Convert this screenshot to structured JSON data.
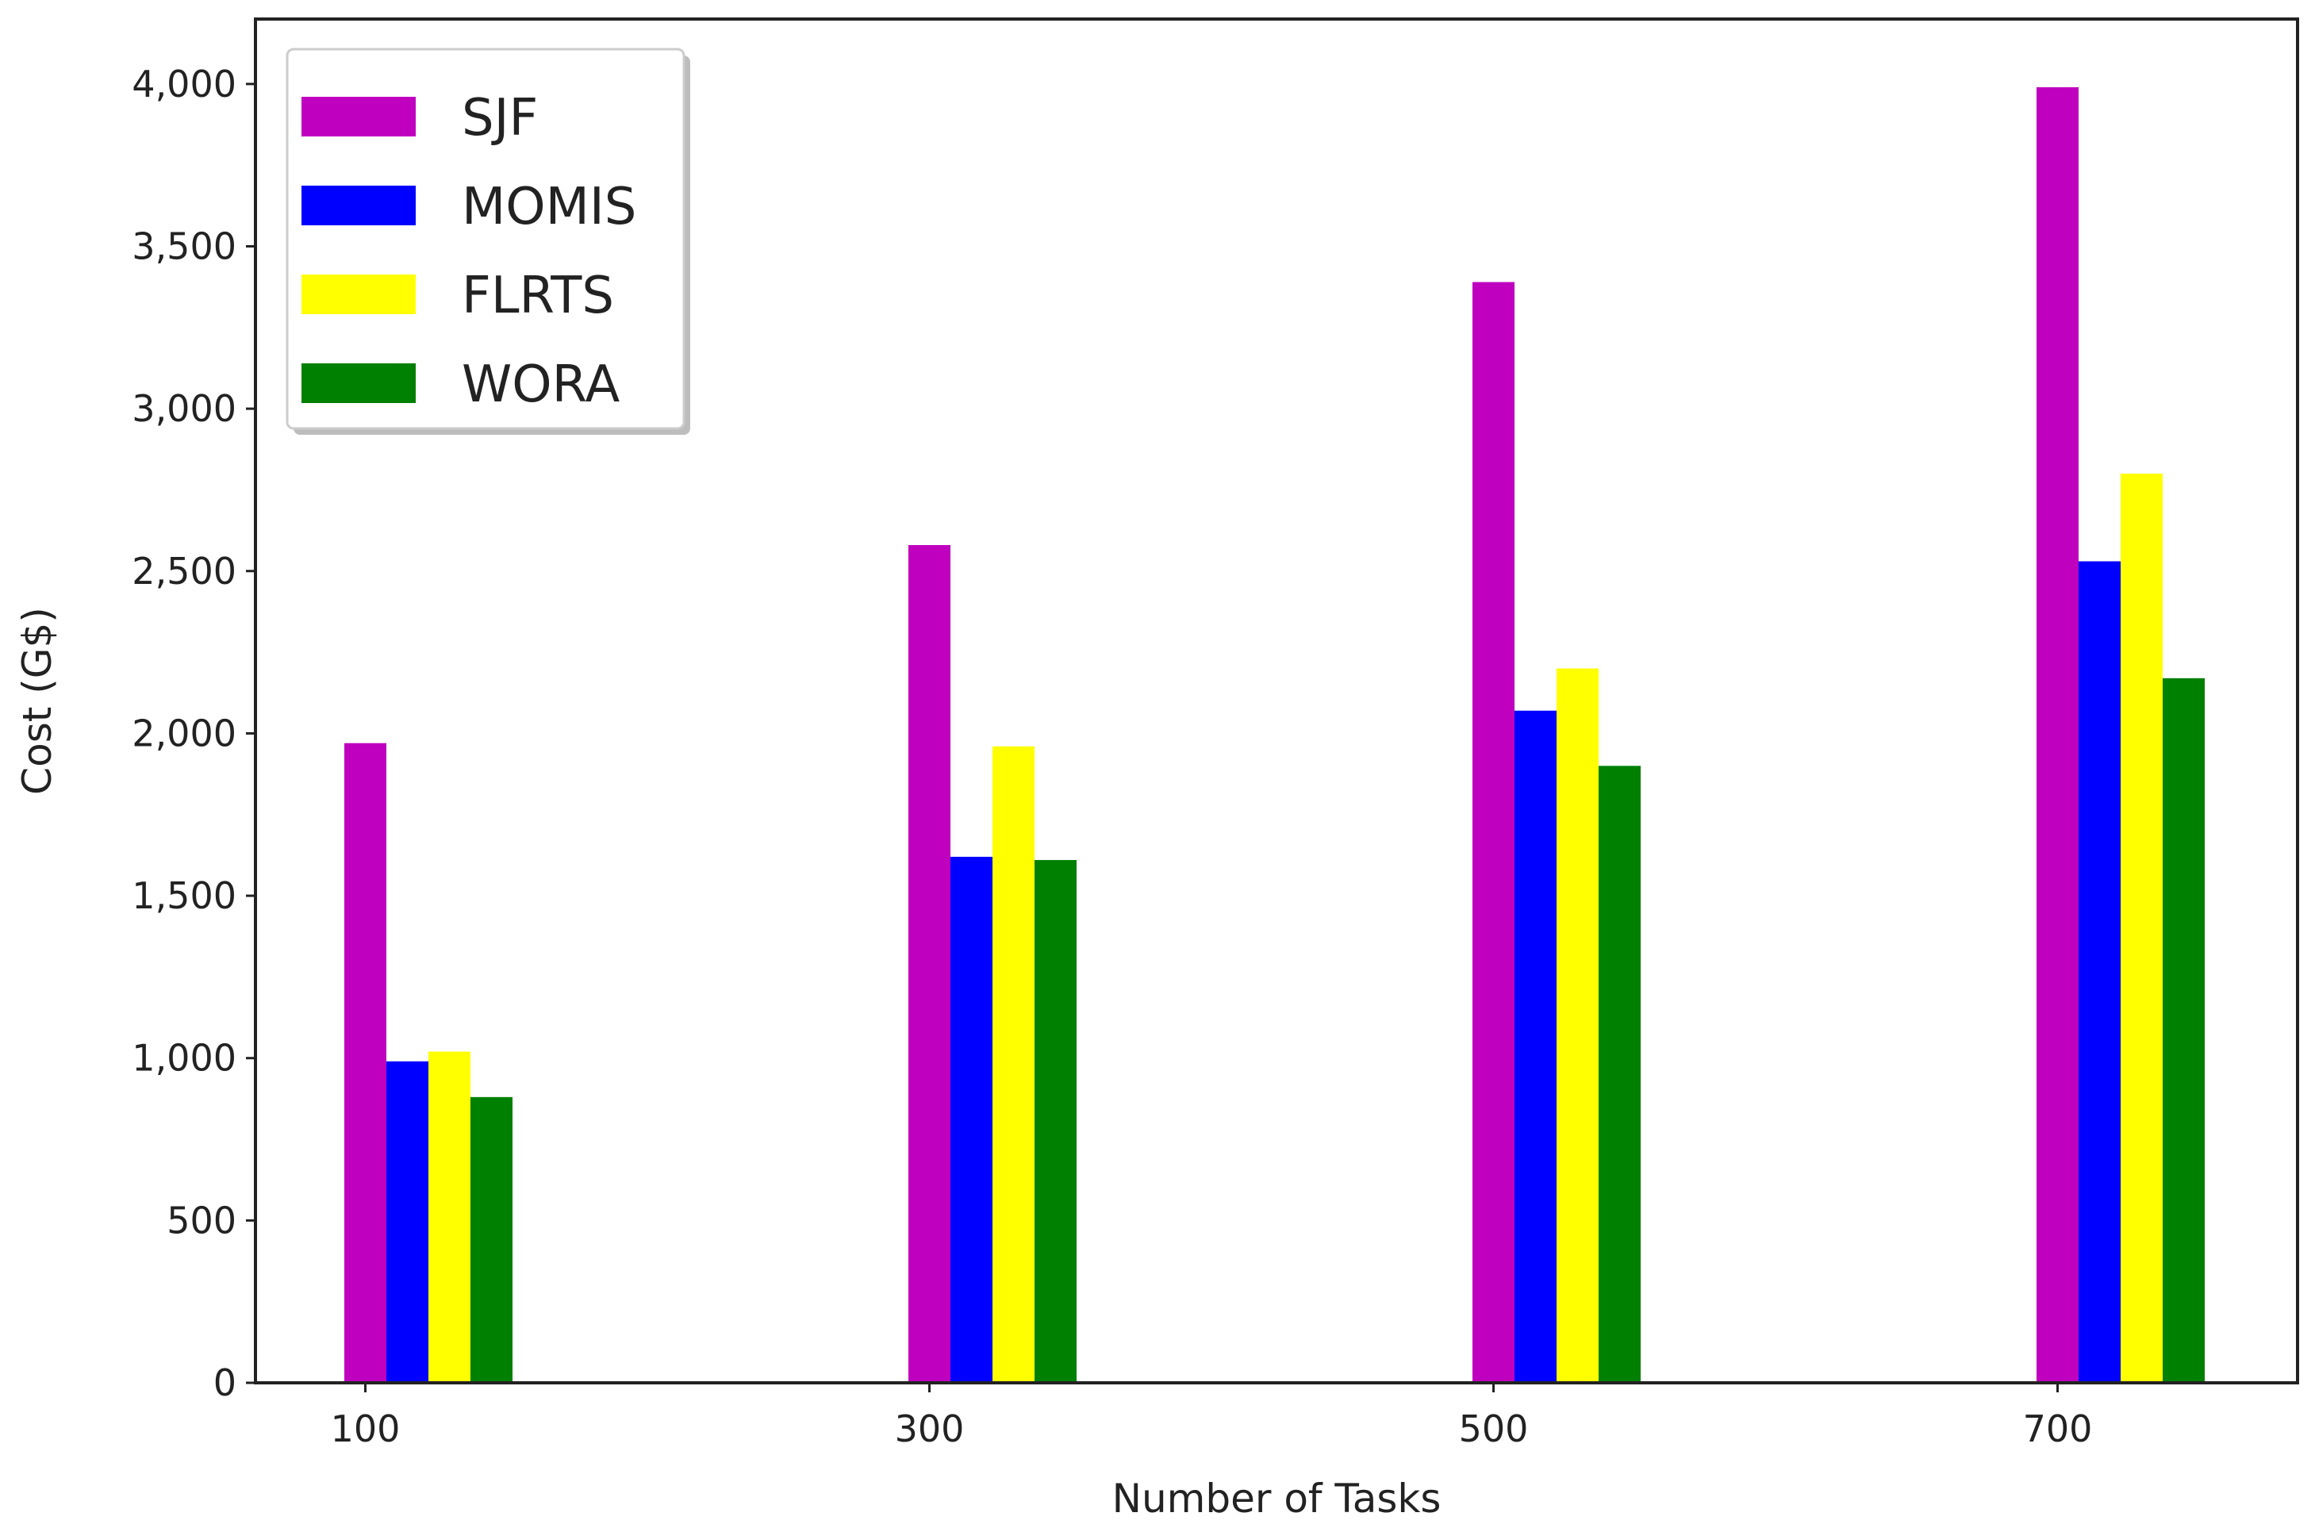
{
  "chart_data": {
    "type": "bar",
    "title": "",
    "xlabel": "Number of Tasks",
    "ylabel": "Cost (G$)",
    "categories": [
      "100",
      "300",
      "500",
      "700"
    ],
    "ylim": [
      0,
      4200
    ],
    "yticks": [
      "0",
      "500",
      "1,000",
      "1,500",
      "2,000",
      "2,500",
      "3,000",
      "3,500",
      "4,000"
    ],
    "ytick_values": [
      0,
      500,
      1000,
      1500,
      2000,
      2500,
      3000,
      3500,
      4000
    ],
    "grid": false,
    "legend_position": "top-left",
    "series": [
      {
        "name": "SJF",
        "color": "#bf00bf",
        "values": [
          1970,
          2580,
          3390,
          3990
        ]
      },
      {
        "name": "MOMIS",
        "color": "#0000ff",
        "values": [
          990,
          1620,
          2070,
          2530
        ]
      },
      {
        "name": "FLRTS",
        "color": "#ffff00",
        "values": [
          1020,
          1960,
          2200,
          2800
        ]
      },
      {
        "name": "WORA",
        "color": "#008000",
        "values": [
          880,
          1610,
          1900,
          2170
        ]
      }
    ]
  }
}
